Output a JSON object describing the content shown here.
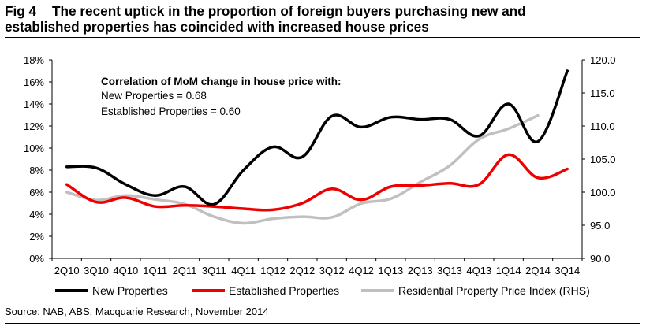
{
  "header": {
    "fig_label": "Fig 4",
    "title_line1": "The recent uptick in the proportion of foreign buyers purchasing new and",
    "title_line2": "established properties has coincided with increased house prices"
  },
  "annotation": {
    "heading": "Correlation of MoM change in house price with:",
    "line1": "New Properties = 0.68",
    "line2": "Established Properties = 0.60"
  },
  "source": "Source: NAB, ABS, Macquarie Research, November 2014",
  "colors": {
    "new": "#000000",
    "established": "#ee0000",
    "index": "#c0c0c0"
  },
  "chart_data": {
    "type": "line",
    "title": "The recent uptick in the proportion of foreign buyers purchasing new and established properties has coincided with increased house prices",
    "categories": [
      "2Q10",
      "3Q10",
      "4Q10",
      "1Q11",
      "2Q11",
      "3Q11",
      "4Q11",
      "1Q12",
      "2Q12",
      "3Q12",
      "4Q12",
      "1Q13",
      "2Q13",
      "3Q13",
      "4Q13",
      "1Q14",
      "2Q14",
      "3Q14"
    ],
    "y_left": {
      "ylim": [
        0,
        18
      ],
      "ticks": [
        0,
        2,
        4,
        6,
        8,
        10,
        12,
        14,
        16,
        18
      ],
      "format": "percent"
    },
    "y_right": {
      "ylim": [
        90,
        120
      ],
      "ticks": [
        90,
        95,
        100,
        105,
        110,
        115,
        120
      ],
      "format": "one_decimal"
    },
    "series": [
      {
        "name": "New Properties",
        "axis": "left",
        "color": "#000000",
        "values": [
          8.3,
          8.2,
          6.7,
          5.7,
          6.5,
          4.9,
          8.0,
          10.1,
          9.2,
          12.9,
          11.9,
          12.8,
          12.6,
          12.6,
          11.1,
          14.0,
          10.6,
          17.0
        ]
      },
      {
        "name": "Established Properties",
        "axis": "left",
        "color": "#ee0000",
        "values": [
          6.7,
          5.1,
          5.5,
          4.7,
          4.8,
          4.7,
          4.5,
          4.4,
          5.0,
          6.3,
          5.3,
          6.5,
          6.6,
          6.8,
          6.7,
          9.4,
          7.3,
          8.1
        ]
      },
      {
        "name": "Residential Property Price Index (RHS)",
        "axis": "right",
        "color": "#c0c0c0",
        "values": [
          100.0,
          98.8,
          99.5,
          98.9,
          98.2,
          96.3,
          95.3,
          96.0,
          96.3,
          96.2,
          98.3,
          99.0,
          101.5,
          104.0,
          108.0,
          109.6,
          111.6,
          null
        ]
      }
    ],
    "legend": [
      "New Properties",
      "Established Properties",
      "Residential Property Price Index (RHS)"
    ],
    "legend_position": "bottom"
  }
}
